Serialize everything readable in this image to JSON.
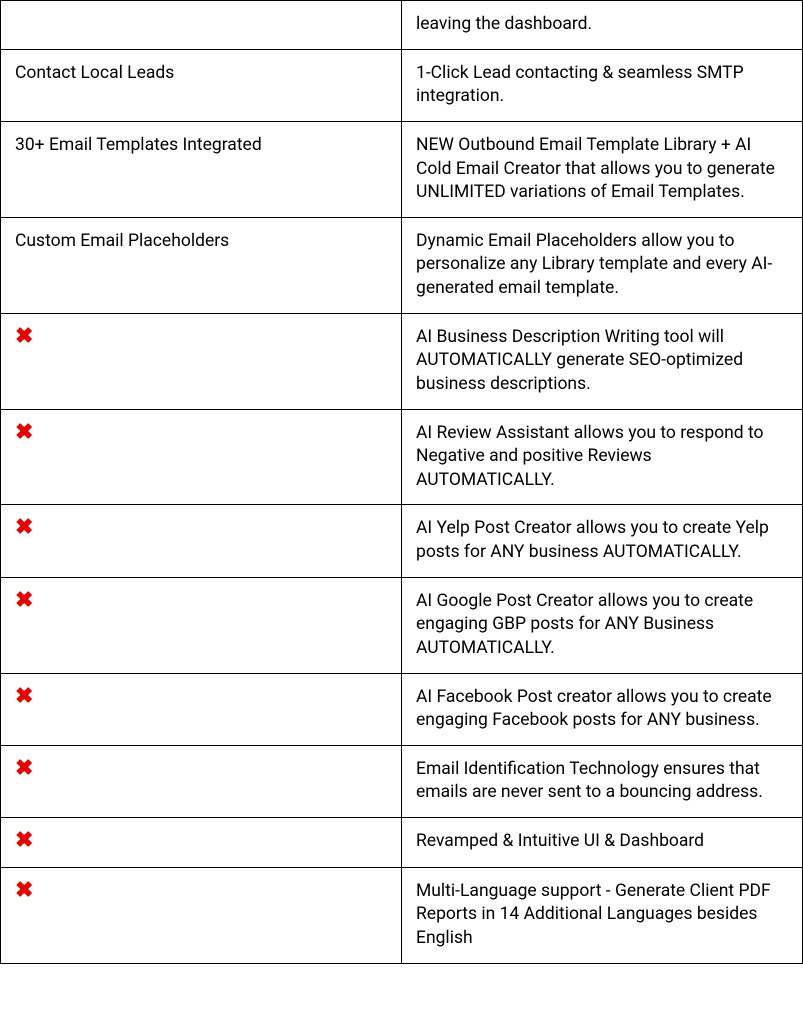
{
  "table": {
    "border_color": "#000000",
    "text_color": "#000000",
    "x_color": "#e60000",
    "background_color": "#ffffff",
    "font_size": 17.5,
    "x_font_size": 22,
    "col_left_width_pct": 50,
    "col_right_width_pct": 50,
    "x_glyph": "✖",
    "rows": [
      {
        "left_type": "text",
        "left": "",
        "right": "leaving the dashboard."
      },
      {
        "left_type": "text",
        "left": "Contact Local Leads",
        "right": "1-Click Lead contacting & seamless SMTP integration."
      },
      {
        "left_type": "text",
        "left": "30+ Email Templates Integrated",
        "right": "NEW Outbound Email Template Library + AI Cold Email Creator that allows you to generate UNLIMITED variations of Email Templates."
      },
      {
        "left_type": "text",
        "left": "Custom Email Placeholders",
        "right": "Dynamic Email Placeholders allow you to personalize any Library template and every AI-generated email template."
      },
      {
        "left_type": "x",
        "left": "",
        "right": "AI Business Description Writing tool will AUTOMATICALLY generate SEO-optimized business descriptions."
      },
      {
        "left_type": "x",
        "left": "",
        "right": "AI Review Assistant allows you to respond to Negative and positive Reviews AUTOMATICALLY."
      },
      {
        "left_type": "x",
        "left": "",
        "right": "AI Yelp Post Creator allows you to create Yelp posts for ANY business AUTOMATICALLY."
      },
      {
        "left_type": "x",
        "left": "",
        "right": "AI Google Post Creator allows you to create engaging GBP posts for ANY Business AUTOMATICALLY."
      },
      {
        "left_type": "x",
        "left": "",
        "right": "AI Facebook Post creator allows you to create engaging Facebook posts for ANY business."
      },
      {
        "left_type": "x",
        "left": "",
        "right": "Email Identification Technology ensures that emails are never sent to a bouncing address."
      },
      {
        "left_type": "x",
        "left": "",
        "right": "Revamped & Intuitive UI & Dashboard"
      },
      {
        "left_type": "x",
        "left": "",
        "right": "Multi-Language support - Generate Client PDF Reports in 14 Additional Languages besides English"
      }
    ]
  }
}
